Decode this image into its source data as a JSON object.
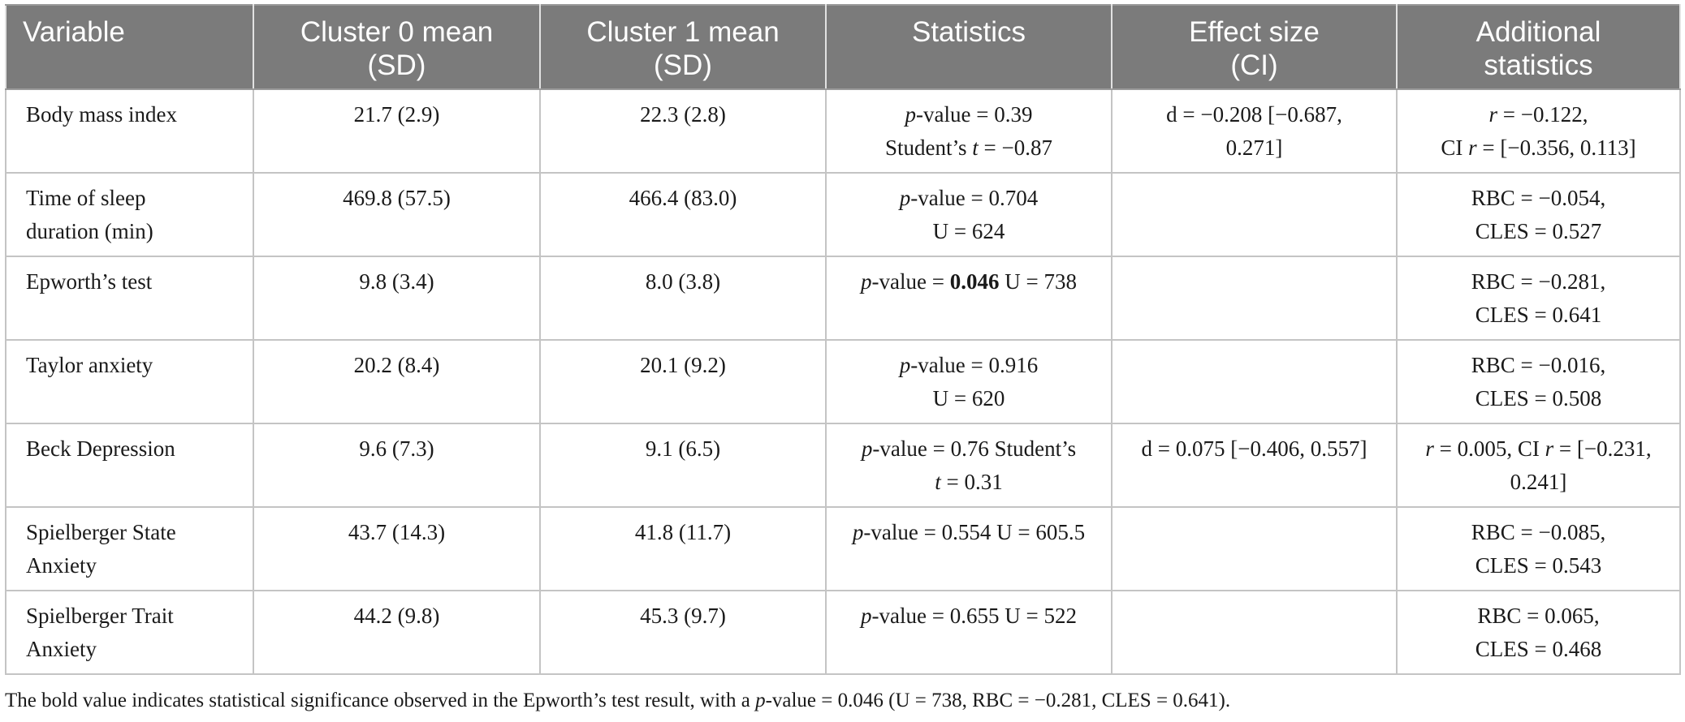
{
  "table": {
    "headers": [
      [
        "Variable"
      ],
      [
        "Cluster 0 mean",
        "(SD)"
      ],
      [
        "Cluster 1 mean",
        "(SD)"
      ],
      [
        "Statistics"
      ],
      [
        "Effect size",
        "(CI)"
      ],
      [
        "Additional",
        "statistics"
      ]
    ],
    "rows": [
      {
        "variable": [
          "Body mass index"
        ],
        "cluster0": "21.7 (2.9)",
        "cluster1": "22.3 (2.8)",
        "statistics": {
          "p_label": "p",
          "p_eq": "-value = ",
          "p_value": "0.39",
          "test_pre": "Student’s ",
          "test_sym": "t",
          "test_post": " = −0.87",
          "p_bold": false,
          "inline": false
        },
        "effect": [
          "d = −0.208 [−0.687,",
          "0.271]"
        ],
        "additional": {
          "line1": [
            {
              "t": "r",
              "i": true
            },
            {
              "t": " = −0.122,",
              "i": false
            }
          ],
          "line2": [
            {
              "t": "CI ",
              "i": false
            },
            {
              "t": "r",
              "i": true
            },
            {
              "t": " = [−0.356, 0.113]",
              "i": false
            }
          ]
        }
      },
      {
        "variable": [
          "Time of sleep",
          "duration (min)"
        ],
        "cluster0": "469.8 (57.5)",
        "cluster1": "466.4 (83.0)",
        "statistics": {
          "p_label": "p",
          "p_eq": "-value = ",
          "p_value": "0.704",
          "test_pre": "U = 624",
          "test_sym": "",
          "test_post": "",
          "p_bold": false,
          "inline": false
        },
        "effect": [
          "",
          ""
        ],
        "additional": {
          "line1": [
            {
              "t": "RBC = −0.054,",
              "i": false
            }
          ],
          "line2": [
            {
              "t": "CLES = 0.527",
              "i": false
            }
          ]
        }
      },
      {
        "variable": [
          "Epworth’s test"
        ],
        "cluster0": "9.8 (3.4)",
        "cluster1": "8.0 (3.8)",
        "statistics": {
          "p_label": "p",
          "p_eq": "-value = ",
          "p_value": "0.046",
          "test_pre": " U = 738",
          "test_sym": "",
          "test_post": "",
          "p_bold": true,
          "inline": true
        },
        "effect": [
          "",
          ""
        ],
        "additional": {
          "line1": [
            {
              "t": "RBC = −0.281,",
              "i": false
            }
          ],
          "line2": [
            {
              "t": "CLES = 0.641",
              "i": false
            }
          ]
        }
      },
      {
        "variable": [
          "Taylor anxiety"
        ],
        "cluster0": "20.2 (8.4)",
        "cluster1": "20.1 (9.2)",
        "statistics": {
          "p_label": "p",
          "p_eq": "-value = ",
          "p_value": "0.916",
          "test_pre": "U = 620",
          "test_sym": "",
          "test_post": "",
          "p_bold": false,
          "inline": false
        },
        "effect": [
          "",
          ""
        ],
        "additional": {
          "line1": [
            {
              "t": "RBC = −0.016,",
              "i": false
            }
          ],
          "line2": [
            {
              "t": "CLES = 0.508",
              "i": false
            }
          ]
        }
      },
      {
        "variable": [
          "Beck Depression"
        ],
        "cluster0": "9.6 (7.3)",
        "cluster1": "9.1 (6.5)",
        "statistics": {
          "p_label": "p",
          "p_eq": "-value = ",
          "p_value": "0.76",
          "test_pre": " Student’s",
          "test_sym": "t",
          "test_post": " = 0.31",
          "p_bold": false,
          "inline": false,
          "split_after_pre": true
        },
        "effect": [
          "d = 0.075 [−0.406, 0.557]",
          ""
        ],
        "additional": {
          "line1": [
            {
              "t": "r",
              "i": true
            },
            {
              "t": " = 0.005, CI ",
              "i": false
            },
            {
              "t": "r",
              "i": true
            },
            {
              "t": " = [−0.231,",
              "i": false
            }
          ],
          "line2": [
            {
              "t": "0.241]",
              "i": false
            }
          ]
        }
      },
      {
        "variable": [
          "Spielberger State",
          "Anxiety"
        ],
        "cluster0": "43.7 (14.3)",
        "cluster1": "41.8 (11.7)",
        "statistics": {
          "p_label": "p",
          "p_eq": "-value = ",
          "p_value": "0.554",
          "test_pre": " U = 605.5",
          "test_sym": "",
          "test_post": "",
          "p_bold": false,
          "inline": true
        },
        "effect": [
          "",
          ""
        ],
        "additional": {
          "line1": [
            {
              "t": "RBC = −0.085,",
              "i": false
            }
          ],
          "line2": [
            {
              "t": "CLES = 0.543",
              "i": false
            }
          ]
        }
      },
      {
        "variable": [
          "Spielberger Trait",
          "Anxiety"
        ],
        "cluster0": "44.2 (9.8)",
        "cluster1": "45.3 (9.7)",
        "statistics": {
          "p_label": "p",
          "p_eq": "-value = ",
          "p_value": "0.655",
          "test_pre": " U = 522",
          "test_sym": "",
          "test_post": "",
          "p_bold": false,
          "inline": true
        },
        "effect": [
          "",
          ""
        ],
        "additional": {
          "line1": [
            {
              "t": "RBC = 0.065,",
              "i": false
            }
          ],
          "line2": [
            {
              "t": "CLES = 0.468",
              "i": false
            }
          ]
        }
      }
    ]
  },
  "footnote": {
    "pre": "The bold value indicates statistical significance observed in the Epworth’s test result, with a ",
    "p": "p",
    "post": "-value = 0.046 (U = 738, RBC = −0.281, CLES = 0.641)."
  }
}
